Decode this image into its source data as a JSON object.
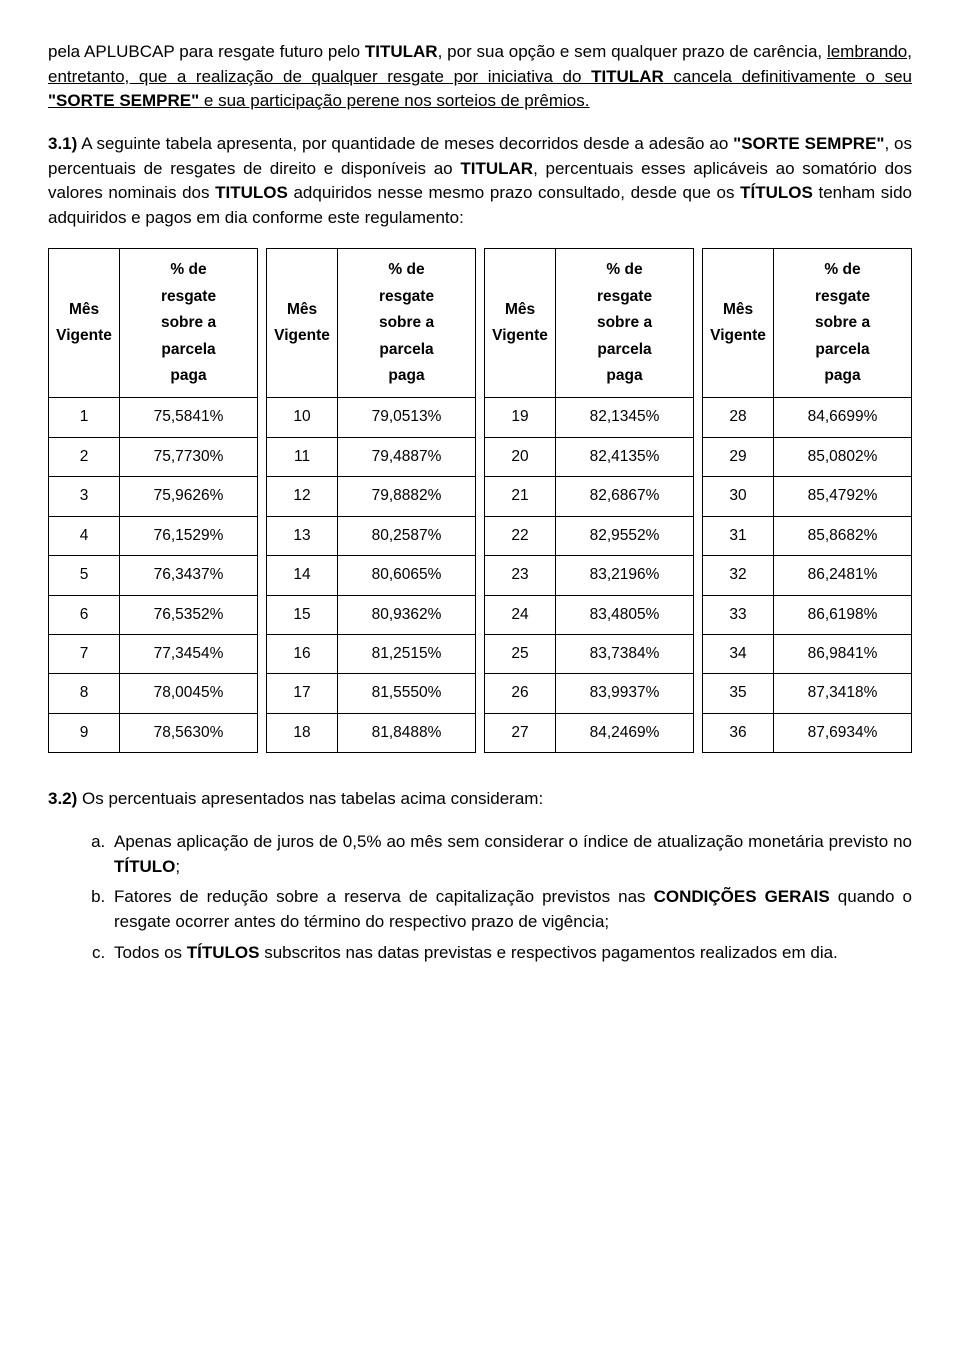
{
  "p1": {
    "t1": "pela APLUBCAP para resgate futuro pelo ",
    "b1": "TITULAR",
    "t2": ", por sua opção e sem qualquer prazo de carência, ",
    "u1": "lembrando, entretanto, que a realização de qualquer resgate por iniciativa do ",
    "ub1": "TITULAR",
    "u2": " cancela definitivamente o seu ",
    "ub2": "\"SORTE SEMPRE\"",
    "u3": " e sua participação perene nos sorteios de prêmios."
  },
  "p2": {
    "b1": "3.1)",
    "t1": " A seguinte tabela apresenta, por quantidade de meses decorridos desde a adesão ao ",
    "b2": "\"SORTE SEMPRE\"",
    "t2": ", os percentuais de resgates de direito e disponíveis ao ",
    "b3": "TITULAR",
    "t3": ", percentuais esses aplicáveis ao somatório dos valores nominais dos ",
    "b4": "TITULOS",
    "t4": " adquiridos nesse mesmo prazo consultado, desde que os ",
    "b5": "TÍTULOS",
    "t5": " tenham sido adquiridos e pagos em dia conforme este regulamento:"
  },
  "headers": {
    "col1_l1": "Mês",
    "col1_l2": "Vigente",
    "col2_l1": "% de",
    "col2_l2": "resgate",
    "col2_l3": "sobre a",
    "col2_l4": "parcela",
    "col2_l5": "paga"
  },
  "tables": [
    [
      {
        "m": "1",
        "v": "75,5841%"
      },
      {
        "m": "2",
        "v": "75,7730%"
      },
      {
        "m": "3",
        "v": "75,9626%"
      },
      {
        "m": "4",
        "v": "76,1529%"
      },
      {
        "m": "5",
        "v": "76,3437%"
      },
      {
        "m": "6",
        "v": "76,5352%"
      },
      {
        "m": "7",
        "v": "77,3454%"
      },
      {
        "m": "8",
        "v": "78,0045%"
      },
      {
        "m": "9",
        "v": "78,5630%"
      }
    ],
    [
      {
        "m": "10",
        "v": "79,0513%"
      },
      {
        "m": "11",
        "v": "79,4887%"
      },
      {
        "m": "12",
        "v": "79,8882%"
      },
      {
        "m": "13",
        "v": "80,2587%"
      },
      {
        "m": "14",
        "v": "80,6065%"
      },
      {
        "m": "15",
        "v": "80,9362%"
      },
      {
        "m": "16",
        "v": "81,2515%"
      },
      {
        "m": "17",
        "v": "81,5550%"
      },
      {
        "m": "18",
        "v": "81,8488%"
      }
    ],
    [
      {
        "m": "19",
        "v": "82,1345%"
      },
      {
        "m": "20",
        "v": "82,4135%"
      },
      {
        "m": "21",
        "v": "82,6867%"
      },
      {
        "m": "22",
        "v": "82,9552%"
      },
      {
        "m": "23",
        "v": "83,2196%"
      },
      {
        "m": "24",
        "v": "83,4805%"
      },
      {
        "m": "25",
        "v": "83,7384%"
      },
      {
        "m": "26",
        "v": "83,9937%"
      },
      {
        "m": "27",
        "v": "84,2469%"
      }
    ],
    [
      {
        "m": "28",
        "v": "84,6699%"
      },
      {
        "m": "29",
        "v": "85,0802%"
      },
      {
        "m": "30",
        "v": "85,4792%"
      },
      {
        "m": "31",
        "v": "85,8682%"
      },
      {
        "m": "32",
        "v": "86,2481%"
      },
      {
        "m": "33",
        "v": "86,6198%"
      },
      {
        "m": "34",
        "v": "86,9841%"
      },
      {
        "m": "35",
        "v": "87,3418%"
      },
      {
        "m": "36",
        "v": "87,6934%"
      }
    ]
  ],
  "p3": {
    "b1": "3.2)",
    "t1": " Os percentuais apresentados nas tabelas acima consideram:"
  },
  "list": {
    "a": {
      "t1": "Apenas aplicação de juros de 0,5% ao mês sem considerar o índice de atualização monetária previsto no ",
      "b1": "TÍTULO",
      "t2": ";"
    },
    "b": {
      "t1": "Fatores de redução sobre a reserva de capitalização previstos nas ",
      "b1": "CONDIÇÕES GERAIS",
      "t2": " quando o resgate ocorrer antes do término do respectivo prazo de vigência;"
    },
    "c": {
      "t1": "Todos os ",
      "b1": "TÍTULOS",
      "t2": " subscritos nas datas previstas e respectivos pagamentos realizados em dia."
    }
  }
}
